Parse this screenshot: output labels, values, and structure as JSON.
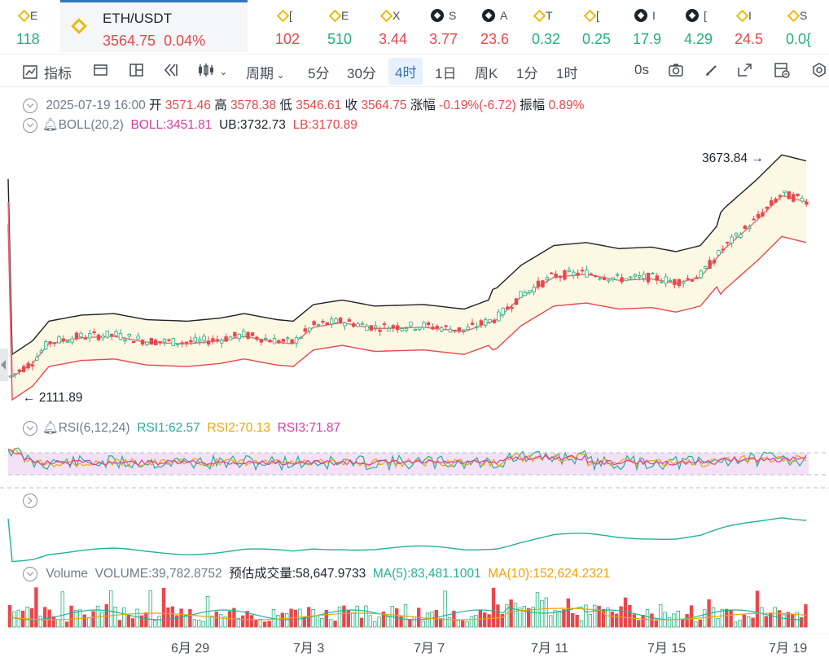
{
  "tickers": [
    {
      "left": 0,
      "label": "E",
      "value": "118",
      "color": "#22b07d",
      "icon": "bnb-icon"
    },
    {
      "left": 318,
      "label": "[",
      "value": "102",
      "color": "#e8484d",
      "icon": "bnb-icon"
    },
    {
      "left": 382,
      "label": "E",
      "value": "510",
      "color": "#22b07d",
      "icon": "bnb-icon"
    },
    {
      "left": 445,
      "label": "X",
      "value": "3.44",
      "color": "#e8484d",
      "icon": "bnb-icon"
    },
    {
      "left": 507,
      "label": "S",
      "value": "3.77",
      "color": "#e8484d",
      "icon": "okx-icon"
    },
    {
      "left": 570,
      "label": "A",
      "value": "23.6",
      "color": "#e8484d",
      "icon": "okx-icon"
    },
    {
      "left": 633,
      "label": "T",
      "value": "0.32",
      "color": "#22b07d",
      "icon": "bnb-icon"
    },
    {
      "left": 695,
      "label": "[",
      "value": "0.25",
      "color": "#22b07d",
      "icon": "bnb-icon"
    },
    {
      "left": 757,
      "label": "I",
      "value": "17.9",
      "color": "#22b07d",
      "icon": "okx-icon"
    },
    {
      "left": 820,
      "label": "[",
      "value": "4.29",
      "color": "#22b07d",
      "icon": "okx-icon"
    },
    {
      "left": 882,
      "label": "I",
      "value": "24.5",
      "color": "#e8484d",
      "icon": "bnb-icon"
    },
    {
      "left": 945,
      "label": "S",
      "value": "0.0{",
      "color": "#22b07d",
      "icon": "bnb-icon"
    }
  ],
  "active_ticker": {
    "symbol": "ETH/USDT",
    "price": "3564.75",
    "change": "0.04%",
    "icon": "bnb-icon"
  },
  "toolbar": {
    "indicators": "指标",
    "period": "周期",
    "intervals": [
      "5分",
      "30分",
      "4时",
      "1日",
      "周K",
      "1分",
      "1时"
    ],
    "selected_interval": "4时",
    "zero_s": "0s"
  },
  "ohlc": {
    "date": "2025-07-19 16:00",
    "open_label": "开",
    "open": "3571.46",
    "high_label": "高",
    "high": "3578.38",
    "low_label": "低",
    "low": "3546.61",
    "close_label": "收",
    "close": "3564.75",
    "change_label": "涨幅",
    "change": "-0.19%(-6.72)",
    "amp_label": "振幅",
    "amp": "0.89%"
  },
  "boll": {
    "name": "BOLL(20,2)",
    "boll": "BOLL:3451.81",
    "ub": "UB:3732.73",
    "lb": "LB:3170.89"
  },
  "price_markers": {
    "high": "3673.84",
    "low": "2111.89"
  },
  "rsi": {
    "name": "RSI(6,12,24)",
    "rsi1": "RSI1:62.57",
    "rsi2": "RSI2:70.13",
    "rsi3": "RSI3:71.87"
  },
  "volume": {
    "label": "Volume",
    "volume": "VOLUME:39,782.8752",
    "est": "预估成交量:58,647.9733",
    "ma5": "MA(5):83,481.1001",
    "ma10": "MA(10):152,624.2321"
  },
  "x_axis": [
    "6月 29",
    "7月 3",
    "7月 7",
    "7月 11",
    "7月 15",
    "7月 19"
  ],
  "colors": {
    "up": "#22b07d",
    "down": "#e8484d",
    "accent": "#3375bb",
    "boll_mid": "#e8697a",
    "boll_band": "#1e2329",
    "boll_fill": "#fdf8e4"
  }
}
